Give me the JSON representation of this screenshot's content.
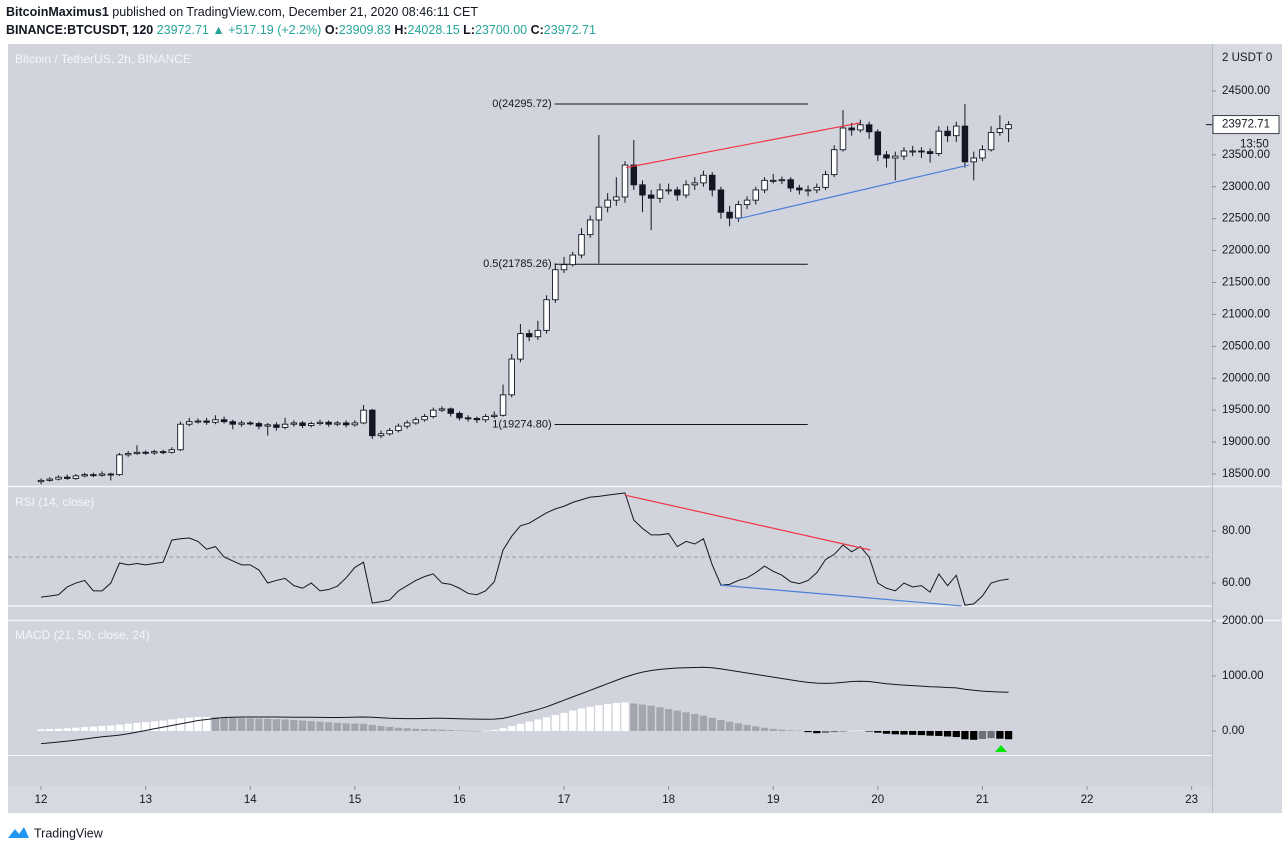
{
  "header": {
    "author": "BitcoinMaximus1",
    "published": "published on TradingView.com, December 21, 2020 08:46:11 CET",
    "symbol": "BINANCE:BTCUSDT, 120",
    "price": "23972.71",
    "change": "▲ +517.19 (+2.2%)",
    "ohlc": [
      {
        "label": "O:",
        "value": "23909.83"
      },
      {
        "label": "H:",
        "value": "24028.15"
      },
      {
        "label": "L:",
        "value": "23700.00"
      },
      {
        "label": "C:",
        "value": "23972.71"
      }
    ]
  },
  "chart_data": {
    "type": "candlestick",
    "title": "Bitcoin / TetherUS, 2h, BINANCE",
    "axis_unit": "2 USDT 0",
    "x": [
      12,
      12.083,
      12.167,
      12.25,
      12.333,
      12.417,
      12.5,
      12.583,
      12.667,
      12.75,
      12.833,
      12.917,
      13,
      13.083,
      13.167,
      13.25,
      13.333,
      13.417,
      13.5,
      13.583,
      13.667,
      13.75,
      13.833,
      13.917,
      14,
      14.083,
      14.167,
      14.25,
      14.333,
      14.417,
      14.5,
      14.583,
      14.667,
      14.75,
      14.833,
      14.917,
      15,
      15.083,
      15.167,
      15.25,
      15.333,
      15.417,
      15.5,
      15.583,
      15.667,
      15.75,
      15.833,
      15.917,
      16,
      16.083,
      16.167,
      16.25,
      16.333,
      16.417,
      16.5,
      16.583,
      16.667,
      16.75,
      16.833,
      16.917,
      17,
      17.083,
      17.167,
      17.25,
      17.333,
      17.417,
      17.5,
      17.583,
      17.667,
      17.75,
      17.833,
      17.917,
      18,
      18.083,
      18.167,
      18.25,
      18.333,
      18.417,
      18.5,
      18.583,
      18.667,
      18.75,
      18.833,
      18.917,
      19,
      19.083,
      19.167,
      19.25,
      19.333,
      19.417,
      19.5,
      19.583,
      19.667,
      19.75,
      19.833,
      19.917,
      20,
      20.083,
      20.167,
      20.25,
      20.333,
      20.417,
      20.5,
      20.583,
      20.667,
      20.75,
      20.833,
      20.917,
      21,
      21.083,
      21.167,
      21.25
    ],
    "open": [
      18380,
      18400,
      18420,
      18450,
      18430,
      18470,
      18490,
      18480,
      18500,
      18490,
      18800,
      18820,
      18840,
      18830,
      18850,
      18840,
      18880,
      19280,
      19320,
      19330,
      19310,
      19350,
      19320,
      19280,
      19300,
      19290,
      19250,
      19270,
      19230,
      19280,
      19300,
      19260,
      19290,
      19310,
      19280,
      19300,
      19270,
      19300,
      19500,
      19100,
      19130,
      19180,
      19250,
      19300,
      19350,
      19400,
      19500,
      19520,
      19450,
      19380,
      19370,
      19350,
      19400,
      19420,
      19740,
      20300,
      20700,
      20650,
      20750,
      21230,
      21700,
      21780,
      21930,
      22250,
      22480,
      22680,
      22790,
      22840,
      23340,
      23030,
      22870,
      22820,
      22950,
      22950,
      22870,
      23030,
      23060,
      23180,
      22950,
      22600,
      22510,
      22720,
      22790,
      22950,
      23100,
      23100,
      23110,
      22980,
      22950,
      22950,
      22990,
      23190,
      23580,
      23920,
      23890,
      23970,
      23860,
      23500,
      23450,
      23480,
      23560,
      23560,
      23550,
      23520,
      23870,
      23800,
      23950,
      23390,
      23450,
      23580,
      23850,
      23909.83
    ],
    "high": [
      18430,
      18450,
      18480,
      18490,
      18500,
      18520,
      18520,
      18540,
      18520,
      18830,
      18860,
      18950,
      18870,
      18880,
      18880,
      18920,
      19320,
      19380,
      19370,
      19380,
      19420,
      19400,
      19350,
      19340,
      19330,
      19320,
      19300,
      19310,
      19380,
      19340,
      19330,
      19320,
      19350,
      19340,
      19330,
      19340,
      19340,
      19580,
      19520,
      19180,
      19220,
      19290,
      19340,
      19390,
      19440,
      19540,
      19560,
      19540,
      19480,
      19420,
      19400,
      19440,
      19480,
      19900,
      20380,
      20850,
      20760,
      20900,
      21300,
      21800,
      21900,
      21980,
      22350,
      22550,
      23810,
      22900,
      23150,
      23400,
      23730,
      23100,
      22950,
      23050,
      23050,
      23000,
      23100,
      23150,
      23250,
      23230,
      23000,
      22700,
      22780,
      22850,
      23000,
      23150,
      23200,
      23160,
      23150,
      23030,
      23020,
      23050,
      23250,
      23650,
      24200,
      24000,
      24050,
      24020,
      23900,
      23560,
      23550,
      23620,
      23640,
      23620,
      23600,
      23950,
      23950,
      24020,
      24295.72,
      23550,
      23650,
      23950,
      24120,
      24028.15
    ],
    "low": [
      18340,
      18380,
      18400,
      18410,
      18410,
      18450,
      18450,
      18460,
      18400,
      18470,
      18770,
      18800,
      18800,
      18800,
      18810,
      18820,
      18860,
      19250,
      19290,
      19270,
      19280,
      19290,
      19200,
      19240,
      19260,
      19200,
      19100,
      19180,
      19200,
      19240,
      19220,
      19230,
      19260,
      19240,
      19250,
      19230,
      19240,
      19280,
      19050,
      19060,
      19100,
      19150,
      19210,
      19270,
      19320,
      19370,
      19470,
      19400,
      19340,
      19320,
      19300,
      19310,
      19370,
      19400,
      19700,
      20250,
      20580,
      20600,
      20700,
      21180,
      21650,
      21750,
      21880,
      22200,
      21800,
      22600,
      22700,
      22750,
      22950,
      22600,
      22320,
      22750,
      22880,
      22780,
      22820,
      22950,
      23000,
      22850,
      22500,
      22380,
      22450,
      22650,
      22720,
      22900,
      23050,
      23040,
      22920,
      22880,
      22850,
      22900,
      22950,
      23150,
      23550,
      23800,
      23850,
      23750,
      23400,
      23300,
      23100,
      23420,
      23480,
      23450,
      23380,
      23480,
      23700,
      23700,
      23300,
      23100,
      23400,
      23550,
      23800,
      23700
    ],
    "close": [
      18400,
      18420,
      18450,
      18430,
      18470,
      18490,
      18480,
      18500,
      18490,
      18800,
      18820,
      18840,
      18830,
      18850,
      18840,
      18880,
      19280,
      19320,
      19330,
      19310,
      19350,
      19320,
      19280,
      19300,
      19290,
      19250,
      19270,
      19230,
      19280,
      19300,
      19260,
      19290,
      19310,
      19280,
      19300,
      19270,
      19300,
      19500,
      19100,
      19130,
      19180,
      19250,
      19300,
      19350,
      19400,
      19500,
      19520,
      19450,
      19380,
      19370,
      19350,
      19400,
      19420,
      19740,
      20300,
      20700,
      20650,
      20750,
      21230,
      21700,
      21780,
      21930,
      22250,
      22480,
      22680,
      22790,
      22840,
      23340,
      23030,
      22870,
      22820,
      22950,
      22950,
      22870,
      23030,
      23060,
      23180,
      22950,
      22600,
      22510,
      22720,
      22790,
      22950,
      23100,
      23100,
      23110,
      22980,
      22950,
      22950,
      22990,
      23190,
      23580,
      23920,
      23890,
      23970,
      23860,
      23500,
      23450,
      23480,
      23560,
      23560,
      23550,
      23520,
      23870,
      23800,
      23950,
      23390,
      23450,
      23580,
      23850,
      23909.83,
      23972.71
    ],
    "up_color": "#ffffff",
    "down_color": "#131722",
    "wick_color": "#131722",
    "xlim": [
      11.684,
      23.195
    ],
    "xticks": [
      12,
      13,
      14,
      15,
      16,
      17,
      18,
      19,
      20,
      21,
      22,
      23
    ],
    "ylim": [
      18312,
      25236
    ],
    "yticks": [
      {
        "value": 18500,
        "label": "18500.00"
      },
      {
        "value": 19000,
        "label": "19000.00"
      },
      {
        "value": 19500,
        "label": "19500.00"
      },
      {
        "value": 20000,
        "label": "20000.00"
      },
      {
        "value": 20500,
        "label": "20500.00"
      },
      {
        "value": 21000,
        "label": "21000.00"
      },
      {
        "value": 21500,
        "label": "21500.00"
      },
      {
        "value": 22000,
        "label": "22000.00"
      },
      {
        "value": 22500,
        "label": "22500.00"
      },
      {
        "value": 23000,
        "label": "23000.00"
      },
      {
        "value": 23500,
        "label": "23500.00"
      },
      {
        "value": 24000,
        "label": "24000.00"
      },
      {
        "value": 24500,
        "label": "24500.00"
      }
    ],
    "last_price": {
      "value": 23972.71,
      "label": "23972.71"
    },
    "countdown": "13:50",
    "fib_x": [
      16.91,
      19.33
    ],
    "fib_levels": [
      {
        "value": 24295.72,
        "label": "0(24295.72)"
      },
      {
        "value": 21785.26,
        "label": "0.5(21785.26)"
      },
      {
        "value": 19274.8,
        "label": "1(19274.80)"
      }
    ],
    "trendlines": [
      {
        "color": "#f23645",
        "x": [
          17.593,
          19.83
        ],
        "y": [
          23300,
          24000
        ]
      },
      {
        "color": "#4a7fd8",
        "x": [
          18.66,
          20.87
        ],
        "y": [
          22495,
          23340
        ]
      }
    ],
    "rsi": {
      "title": "RSI (14, close)",
      "color": "#131722",
      "ylim": [
        45.8,
        96.9
      ],
      "yticks": [
        {
          "value": 60,
          "label": "60.00"
        },
        {
          "value": 80,
          "label": "80.00"
        }
      ],
      "levels": [
        {
          "value": 70,
          "dashed": true
        },
        {
          "value": 51.2,
          "dashed": false
        }
      ],
      "values": [
        54.6,
        55,
        55.5,
        58.5,
        60,
        61,
        57,
        57,
        60,
        67.7,
        67,
        67.5,
        67,
        67.5,
        68,
        76.5,
        77,
        77.3,
        76,
        73,
        74,
        70,
        68.5,
        67,
        67,
        65,
        60,
        61,
        61.8,
        59,
        58,
        60,
        57,
        57.5,
        58.8,
        62,
        66,
        68,
        52.3,
        52.8,
        53.5,
        57,
        59,
        61,
        62.5,
        63.5,
        60,
        59.5,
        58,
        56,
        55.5,
        57,
        60.5,
        72.7,
        78,
        82,
        83,
        85,
        87,
        88.5,
        89.5,
        91,
        92,
        93,
        93.3,
        93.8,
        94.2,
        94.6,
        84.2,
        81,
        78.5,
        78.5,
        79,
        74,
        76,
        75,
        77,
        67,
        59.2,
        59.5,
        61,
        62,
        64,
        66.5,
        64.5,
        63,
        60.5,
        59.8,
        61,
        64,
        69,
        71,
        74.6,
        72,
        74,
        70,
        60,
        58,
        57,
        60,
        58.5,
        59,
        56.5,
        63.5,
        59,
        63,
        51.5,
        52,
        55,
        60,
        61,
        61.5
      ],
      "trendlines": [
        {
          "color": "#f23645",
          "x": [
            17.58,
            19.93
          ],
          "y": [
            93.8,
            72.7
          ]
        },
        {
          "color": "#4a7fd8",
          "x": [
            18.49,
            20.8
          ],
          "y": [
            59.2,
            51.2
          ]
        }
      ]
    },
    "macd": {
      "title": "MACD (21, 50, close, 24)",
      "color": "#131722",
      "ylim": [
        -1000,
        2000
      ],
      "yticks": [
        {
          "value": 0,
          "label": "0.00"
        },
        {
          "value": 1000,
          "label": "1000.00"
        },
        {
          "value": 2000,
          "label": "2000.00"
        }
      ],
      "hist_colors": {
        "pos_rising": "#ffffff",
        "pos_falling": "#a3a6af",
        "neg_falling": "#000000",
        "neg_rising": "#6e717a"
      },
      "values": [
        -230,
        -215,
        -200,
        -185,
        -165,
        -145,
        -125,
        -105,
        -90,
        -75,
        -50,
        -20,
        10,
        40,
        70,
        100,
        130,
        160,
        190,
        210,
        230,
        245,
        250,
        255,
        255,
        255,
        255,
        255,
        252,
        250,
        250,
        250,
        248,
        245,
        245,
        248,
        252,
        255,
        250,
        240,
        232,
        228,
        225,
        225,
        228,
        232,
        232,
        228,
        222,
        218,
        215,
        213,
        215,
        230,
        265,
        310,
        350,
        390,
        440,
        500,
        560,
        620,
        680,
        740,
        800,
        860,
        920,
        980,
        1030,
        1070,
        1100,
        1120,
        1135,
        1145,
        1150,
        1155,
        1160,
        1150,
        1130,
        1105,
        1080,
        1055,
        1030,
        1005,
        980,
        955,
        930,
        905,
        885,
        870,
        865,
        870,
        885,
        900,
        905,
        900,
        880,
        860,
        845,
        835,
        825,
        815,
        805,
        800,
        790,
        785,
        760,
        740,
        725,
        715,
        710,
        705
      ],
      "histogram": [
        30,
        35,
        40,
        50,
        60,
        70,
        80,
        90,
        100,
        115,
        130,
        145,
        160,
        175,
        190,
        210,
        230,
        245,
        255,
        255,
        250,
        245,
        240,
        235,
        230,
        225,
        220,
        215,
        210,
        200,
        190,
        180,
        170,
        160,
        150,
        140,
        135,
        130,
        110,
        90,
        75,
        60,
        50,
        40,
        35,
        30,
        25,
        18,
        10,
        5,
        2,
        5,
        20,
        50,
        90,
        130,
        170,
        210,
        250,
        290,
        330,
        370,
        410,
        440,
        470,
        490,
        510,
        520,
        500,
        480,
        460,
        430,
        400,
        370,
        340,
        310,
        280,
        240,
        200,
        170,
        140,
        110,
        85,
        60,
        40,
        25,
        12,
        5,
        -20,
        -40,
        -35,
        -20,
        -5,
        5,
        10,
        -5,
        -30,
        -50,
        -60,
        -65,
        -70,
        -75,
        -85,
        -90,
        -100,
        -110,
        -150,
        -160,
        -145,
        -130,
        -140,
        -150
      ]
    }
  },
  "footer": "TradingView"
}
